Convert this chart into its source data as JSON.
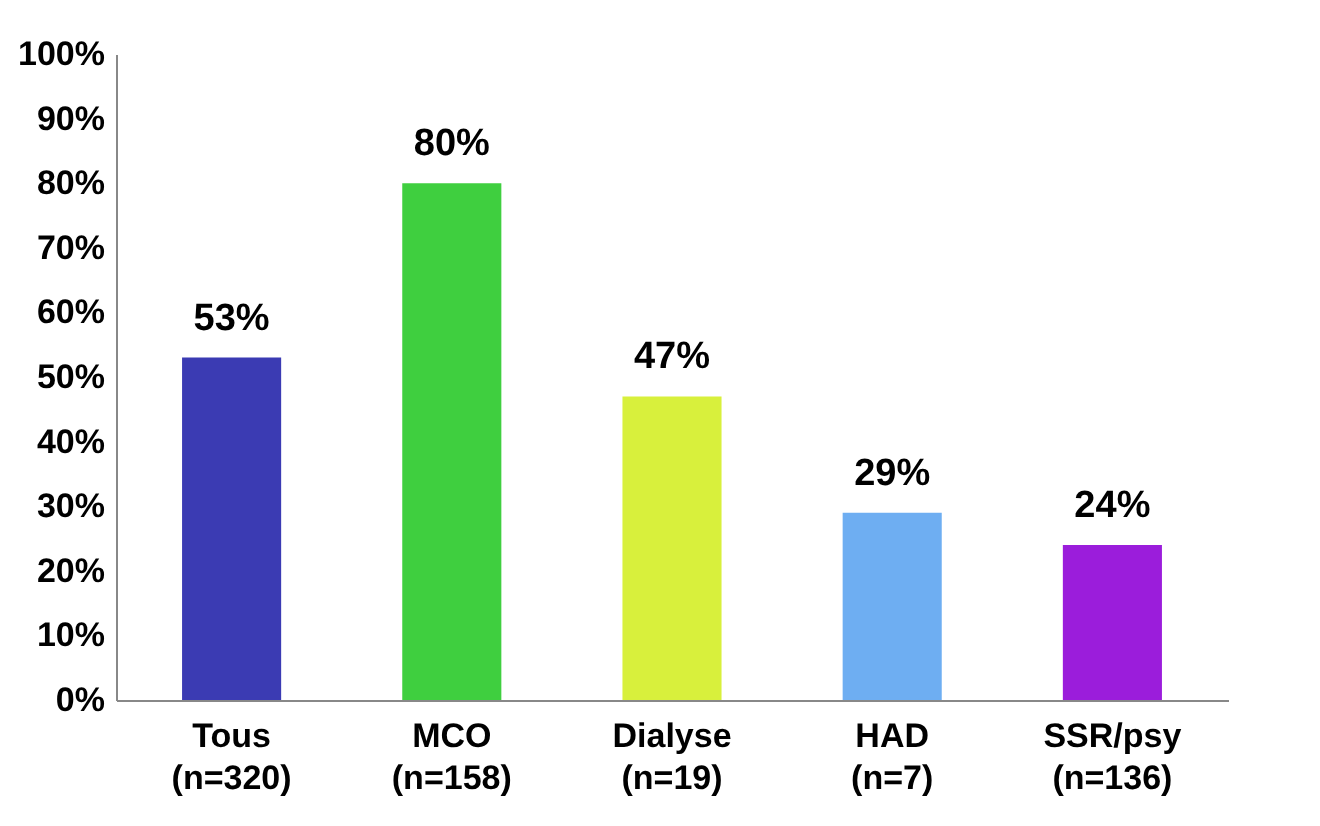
{
  "chart_data": {
    "type": "bar",
    "categories": [
      "Tous\n(n=320)",
      "MCO\n(n=158)",
      "Dialyse\n(n=19)",
      "HAD\n(n=7)",
      "SSR/psy\n(n=136)"
    ],
    "values": [
      53,
      80,
      47,
      29,
      24
    ],
    "colors": [
      "#3b3bb3",
      "#3fcf3f",
      "#d8f03c",
      "#6eaef2",
      "#9b1ddb"
    ],
    "value_labels": [
      "53%",
      "80%",
      "47%",
      "29%",
      "24%"
    ],
    "ylim": [
      0,
      100
    ],
    "yticks": [
      {
        "value": 0,
        "label": "0%"
      },
      {
        "value": 10,
        "label": "10%"
      },
      {
        "value": 20,
        "label": "20%"
      },
      {
        "value": 30,
        "label": "30%"
      },
      {
        "value": 40,
        "label": "40%"
      },
      {
        "value": 50,
        "label": "50%"
      },
      {
        "value": 60,
        "label": "60%"
      },
      {
        "value": 70,
        "label": "70%"
      },
      {
        "value": 80,
        "label": "80%"
      },
      {
        "value": 90,
        "label": "90%"
      },
      {
        "value": 100,
        "label": "100%"
      }
    ],
    "grid": false
  }
}
